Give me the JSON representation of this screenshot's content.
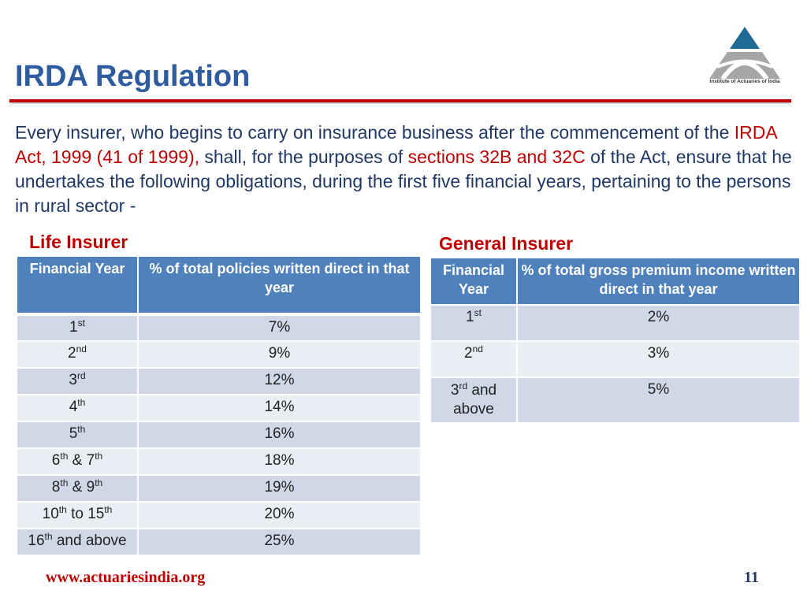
{
  "title": "IRDA Regulation",
  "logo": {
    "text": "Institute of Actuaries of India"
  },
  "intro": {
    "p1": "Every insurer, who begins to carry on insurance business after the commencement of the ",
    "act": "IRDA Act, 1999 (41 of 1999),",
    "p2": " shall, for the purposes of ",
    "sections": "sections 32B and 32C",
    "p3": " of the Act, ensure that he undertakes the following obligations, during the first five financial years, pertaining to the persons in rural sector -"
  },
  "life": {
    "heading": "Life Insurer",
    "headers": [
      "Financial Year",
      "% of total policies written direct in that year"
    ],
    "rows": [
      {
        "year": [
          [
            "1",
            "st"
          ]
        ],
        "value": "7%"
      },
      {
        "year": [
          [
            "2",
            "nd"
          ]
        ],
        "value": "9%"
      },
      {
        "year": [
          [
            "3",
            "rd"
          ]
        ],
        "value": "12%"
      },
      {
        "year": [
          [
            "4",
            "th"
          ]
        ],
        "value": "14%"
      },
      {
        "year": [
          [
            "5",
            "th"
          ]
        ],
        "value": "16%"
      },
      {
        "year": [
          [
            "6",
            "th"
          ],
          [
            "  & 7",
            "th"
          ]
        ],
        "value": "18%"
      },
      {
        "year": [
          [
            "8",
            "th"
          ],
          [
            " & 9",
            "th"
          ]
        ],
        "value": "19%"
      },
      {
        "year": [
          [
            "10",
            "th"
          ],
          [
            " to 15",
            "th"
          ]
        ],
        "value": "20%"
      },
      {
        "year": [
          [
            "16",
            "th"
          ],
          [
            " and above",
            ""
          ]
        ],
        "value": "25%"
      }
    ]
  },
  "general": {
    "heading": "General Insurer",
    "headers": [
      "Financial Year",
      "% of total gross premium income written direct in that year"
    ],
    "rows": [
      {
        "year": [
          [
            "1",
            "st"
          ]
        ],
        "value": "2%"
      },
      {
        "year": [
          [
            "2",
            "nd"
          ]
        ],
        "value": "3%"
      },
      {
        "year": [
          [
            "3",
            "rd"
          ],
          [
            "  and above",
            ""
          ]
        ],
        "value": "5%"
      }
    ]
  },
  "footer": {
    "url": "www.actuariesindia.org",
    "page": "11"
  }
}
